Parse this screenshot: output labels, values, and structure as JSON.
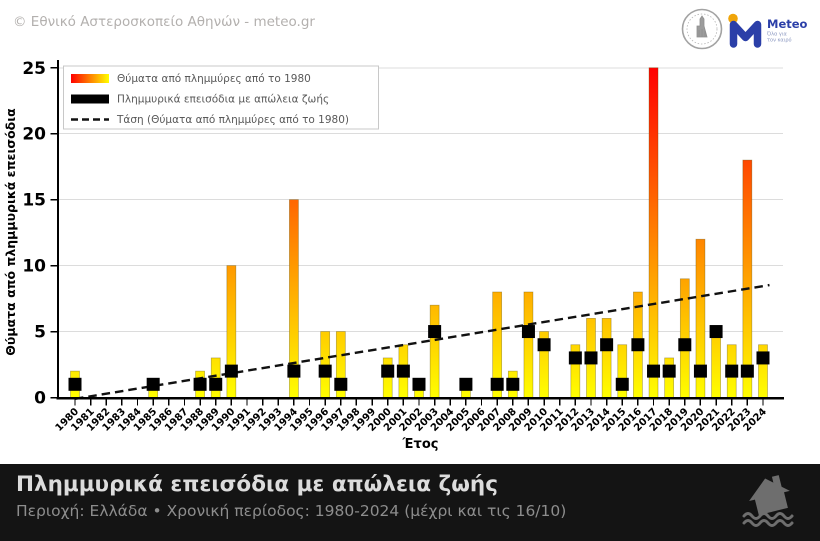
{
  "header": {
    "copyright": "© Εθνικό Αστεροσκοπείο Αθηνών - meteo.gr"
  },
  "logos": {
    "noa_seal": "noa-observatory-seal",
    "meteo": {
      "wordmark": "Meteo",
      "tagline_lines": [
        "Όλα για",
        "τον καιρό"
      ]
    }
  },
  "chart_data": {
    "type": "bar",
    "title": "",
    "xlabel": "Έτος",
    "ylabel": "Θύματα από πλημμυρικά επεισόδια",
    "ylim": [
      0,
      25
    ],
    "yticks": [
      0,
      5,
      10,
      15,
      20,
      25
    ],
    "grid": "horizontal",
    "legend_position": "upper-left",
    "categories": [
      1980,
      1981,
      1982,
      1983,
      1984,
      1985,
      1986,
      1987,
      1988,
      1989,
      1990,
      1991,
      1992,
      1993,
      1994,
      1995,
      1996,
      1997,
      1998,
      1999,
      2000,
      2001,
      2002,
      2003,
      2004,
      2005,
      2006,
      2007,
      2008,
      2009,
      2010,
      2011,
      2012,
      2013,
      2014,
      2015,
      2016,
      2017,
      2018,
      2019,
      2020,
      2021,
      2022,
      2023,
      2024
    ],
    "series": [
      {
        "name": "Θύματα από πλημμύρες από το 1980",
        "type": "bar",
        "values": [
          2,
          0,
          0,
          0,
          0,
          1,
          0,
          0,
          2,
          3,
          10,
          0,
          0,
          0,
          15,
          0,
          5,
          5,
          0,
          0,
          3,
          4,
          1,
          7,
          0,
          1,
          0,
          8,
          2,
          8,
          5,
          0,
          4,
          6,
          6,
          4,
          8,
          25,
          3,
          9,
          12,
          5,
          4,
          18,
          4
        ]
      },
      {
        "name": "Πλημμυρικά επεισόδια με απώλεια ζωής",
        "type": "square-marker",
        "values": [
          1,
          0,
          0,
          0,
          0,
          1,
          0,
          0,
          1,
          1,
          2,
          0,
          0,
          0,
          2,
          0,
          2,
          1,
          0,
          0,
          2,
          2,
          1,
          5,
          0,
          1,
          0,
          1,
          1,
          5,
          4,
          0,
          3,
          3,
          4,
          1,
          4,
          2,
          2,
          4,
          2,
          5,
          2,
          2,
          3
        ]
      },
      {
        "name": "Τάση (Θύματα από πλημμύρες από το 1980)",
        "type": "trend-dashed",
        "points": [
          [
            1980,
            -0.1
          ],
          [
            2024,
            8.45
          ]
        ]
      }
    ],
    "colors": {
      "bar_low": "#ffff00",
      "bar_high": "#ff0000",
      "episodes": "#000000",
      "trend": "#111111"
    }
  },
  "banner": {
    "title": "Πλημμυρικά επεισόδια με απώλεια ζωής",
    "subtitle": "Περιοχή: Ελλάδα • Χρονική περίοδος: 1980-2024 (μέχρι και τις 16/10)"
  }
}
